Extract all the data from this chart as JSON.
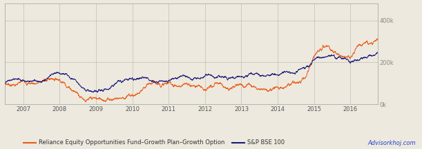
{
  "background_color": "#ede9de",
  "plot_bg_color": "#ede9de",
  "orange_color": "#e85c1a",
  "blue_color": "#1a1a7a",
  "grid_color": "#c8c4b8",
  "border_color": "#aaaaaa",
  "ylabel_ticks": [
    "0k",
    "200k",
    "400k"
  ],
  "ylabel_values": [
    0,
    200000,
    400000
  ],
  "ylim": [
    0,
    480000
  ],
  "xlim_start": 2006.5,
  "xlim_end": 2016.75,
  "xtick_years": [
    2007,
    2008,
    2009,
    2010,
    2011,
    2012,
    2013,
    2014,
    2015,
    2016
  ],
  "legend_orange": "Reliance Equity Opportunities Fund–Growth Plan–Growth Option",
  "legend_blue": "S&P BSE 100",
  "watermark": "Advisorkhoj.com",
  "watermark_color": "#2244cc",
  "legend_text_color": "#333333"
}
